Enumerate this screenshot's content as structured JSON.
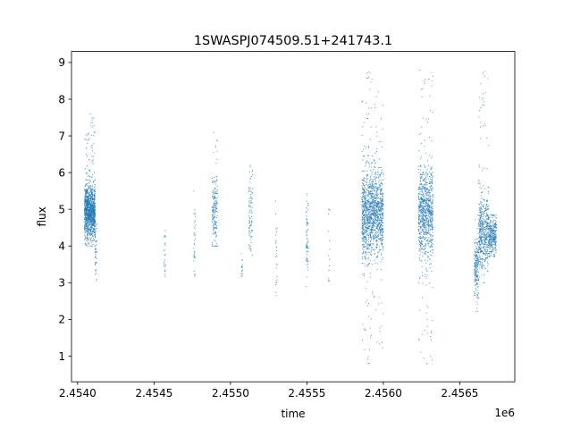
{
  "chart_data": {
    "type": "scatter",
    "title": "1SWASPJ074509.51+241743.1",
    "xlabel": "time",
    "ylabel": "flux",
    "x_offset_label": "1e6",
    "xlim": [
      2453960,
      2456860
    ],
    "ylim": [
      0.3,
      9.3
    ],
    "x_ticks": [
      {
        "value": 2454000,
        "label": "2.4540"
      },
      {
        "value": 2454500,
        "label": "2.4545"
      },
      {
        "value": 2455000,
        "label": "2.4550"
      },
      {
        "value": 2455500,
        "label": "2.4555"
      },
      {
        "value": 2456000,
        "label": "2.4560"
      },
      {
        "value": 2456500,
        "label": "2.4565"
      }
    ],
    "y_ticks": [
      {
        "value": 1,
        "label": "1"
      },
      {
        "value": 2,
        "label": "2"
      },
      {
        "value": 3,
        "label": "3"
      },
      {
        "value": 4,
        "label": "4"
      },
      {
        "value": 5,
        "label": "5"
      },
      {
        "value": 6,
        "label": "6"
      },
      {
        "value": 7,
        "label": "7"
      },
      {
        "value": 8,
        "label": "8"
      },
      {
        "value": 9,
        "label": "9"
      }
    ],
    "grid": false,
    "legend": "none",
    "marker_color": "#1f77b4",
    "observation_clusters": [
      {
        "time": [
          2454045,
          2454080
        ],
        "flux_center": 4.95,
        "flux_spread": 0.35,
        "flux_min": 3.9,
        "flux_max": 7.1,
        "density": 600
      },
      {
        "time": [
          2454080,
          2454115
        ],
        "flux_center": 4.9,
        "flux_spread": 0.35,
        "flux_min": 4.0,
        "flux_max": 7.6,
        "density": 600
      },
      {
        "time": [
          2454115,
          2454125
        ],
        "flux_center": 3.8,
        "flux_spread": 0.4,
        "flux_min": 3.05,
        "flux_max": 4.6,
        "density": 40
      },
      {
        "time": [
          2454565,
          2454575
        ],
        "flux_center": 3.7,
        "flux_spread": 0.35,
        "flux_min": 2.75,
        "flux_max": 4.5,
        "density": 25
      },
      {
        "time": [
          2454760,
          2454772
        ],
        "flux_center": 4.0,
        "flux_spread": 0.5,
        "flux_min": 2.9,
        "flux_max": 5.5,
        "density": 35
      },
      {
        "time": [
          2454880,
          2454915
        ],
        "flux_center": 4.9,
        "flux_spread": 0.5,
        "flux_min": 4.0,
        "flux_max": 7.3,
        "density": 180
      },
      {
        "time": [
          2455070,
          2455080
        ],
        "flux_center": 3.4,
        "flux_spread": 0.2,
        "flux_min": 3.0,
        "flux_max": 3.8,
        "density": 15
      },
      {
        "time": [
          2455120,
          2455145
        ],
        "flux_center": 4.85,
        "flux_spread": 0.5,
        "flux_min": 3.4,
        "flux_max": 6.2,
        "density": 90
      },
      {
        "time": [
          2455295,
          2455305
        ],
        "flux_center": 3.9,
        "flux_spread": 0.6,
        "flux_min": 2.65,
        "flux_max": 5.6,
        "density": 25
      },
      {
        "time": [
          2455495,
          2455510
        ],
        "flux_center": 4.3,
        "flux_spread": 0.6,
        "flux_min": 2.9,
        "flux_max": 5.6,
        "density": 70
      },
      {
        "time": [
          2455640,
          2455650
        ],
        "flux_center": 3.8,
        "flux_spread": 0.7,
        "flux_min": 3.05,
        "flux_max": 5.0,
        "density": 15
      },
      {
        "time": [
          2455860,
          2455925
        ],
        "flux_center": 4.9,
        "flux_spread": 0.6,
        "flux_min": 0.75,
        "flux_max": 8.8,
        "density": 700
      },
      {
        "time": [
          2455925,
          2456000
        ],
        "flux_center": 4.9,
        "flux_spread": 0.55,
        "flux_min": 1.2,
        "flux_max": 8.7,
        "density": 700
      },
      {
        "time": [
          2456230,
          2456325
        ],
        "flux_center": 4.9,
        "flux_spread": 0.6,
        "flux_min": 0.7,
        "flux_max": 8.8,
        "density": 900
      },
      {
        "time": [
          2456595,
          2456625
        ],
        "flux_center": 3.4,
        "flux_spread": 0.4,
        "flux_min": 1.95,
        "flux_max": 5.0,
        "density": 200
      },
      {
        "time": [
          2456625,
          2456690
        ],
        "flux_center": 4.4,
        "flux_spread": 0.5,
        "flux_min": 3.0,
        "flux_max": 8.8,
        "density": 500
      },
      {
        "time": [
          2456690,
          2456740
        ],
        "flux_center": 4.3,
        "flux_spread": 0.25,
        "flux_min": 3.7,
        "flux_max": 4.85,
        "density": 300
      }
    ]
  }
}
